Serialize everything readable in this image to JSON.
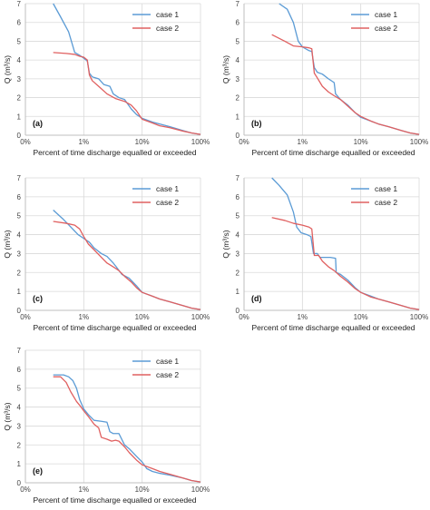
{
  "legend_labels": [
    "case 1",
    "case 2"
  ],
  "colors": {
    "case1": "#5b9bd5",
    "case2": "#e06060",
    "grid": "#d9d9d9",
    "axis": "#bfbfbf"
  },
  "chart_data": [
    {
      "type": "line",
      "panel_label": "(a)",
      "xlabel": "Percent of time discharge equalled or exceeded",
      "ylabel": "Q (m³/s)",
      "x_scale": "log",
      "xlim": [
        0.1,
        100
      ],
      "ylim": [
        0,
        7
      ],
      "x_ticks": [
        "0%",
        "1%",
        "10%",
        "100%"
      ],
      "y_ticks": [
        "0",
        "1",
        "2",
        "3",
        "4",
        "5",
        "6",
        "7"
      ],
      "series": [
        {
          "name": "case 1",
          "points": [
            [
              0.3,
              7.0
            ],
            [
              0.4,
              6.3
            ],
            [
              0.55,
              5.5
            ],
            [
              0.7,
              4.4
            ],
            [
              0.85,
              4.25
            ],
            [
              1.0,
              4.1
            ],
            [
              1.15,
              3.95
            ],
            [
              1.25,
              3.3
            ],
            [
              1.4,
              3.1
            ],
            [
              1.8,
              3.0
            ],
            [
              2.2,
              2.7
            ],
            [
              2.8,
              2.6
            ],
            [
              3.2,
              2.2
            ],
            [
              4.0,
              2.0
            ],
            [
              5.0,
              1.9
            ],
            [
              6.5,
              1.4
            ],
            [
              8.0,
              1.1
            ],
            [
              10,
              0.9
            ],
            [
              15,
              0.7
            ],
            [
              20,
              0.6
            ],
            [
              30,
              0.45
            ],
            [
              50,
              0.25
            ],
            [
              70,
              0.12
            ],
            [
              100,
              0.04
            ]
          ]
        },
        {
          "name": "case 2",
          "points": [
            [
              0.3,
              4.4
            ],
            [
              0.5,
              4.35
            ],
            [
              0.7,
              4.3
            ],
            [
              0.85,
              4.2
            ],
            [
              1.0,
              4.15
            ],
            [
              1.15,
              4.0
            ],
            [
              1.25,
              3.2
            ],
            [
              1.4,
              2.9
            ],
            [
              1.8,
              2.6
            ],
            [
              2.5,
              2.2
            ],
            [
              3.5,
              1.95
            ],
            [
              5.0,
              1.8
            ],
            [
              6.5,
              1.6
            ],
            [
              8.0,
              1.3
            ],
            [
              10,
              0.85
            ],
            [
              15,
              0.65
            ],
            [
              20,
              0.5
            ],
            [
              30,
              0.4
            ],
            [
              50,
              0.22
            ],
            [
              70,
              0.12
            ],
            [
              100,
              0.04
            ]
          ]
        }
      ]
    },
    {
      "type": "line",
      "panel_label": "(b)",
      "xlabel": "Percent of time discharge equalled or exceeded",
      "ylabel": "Q (m³/s)",
      "x_scale": "log",
      "xlim": [
        0.1,
        100
      ],
      "ylim": [
        0,
        7
      ],
      "x_ticks": [
        "0%",
        "1%",
        "10%",
        "100%"
      ],
      "y_ticks": [
        "0",
        "1",
        "2",
        "3",
        "4",
        "5",
        "6",
        "7"
      ],
      "series": [
        {
          "name": "case 1",
          "points": [
            [
              0.4,
              7.0
            ],
            [
              0.55,
              6.7
            ],
            [
              0.7,
              6.0
            ],
            [
              0.85,
              5.0
            ],
            [
              1.0,
              4.7
            ],
            [
              1.3,
              4.5
            ],
            [
              1.45,
              4.45
            ],
            [
              1.6,
              3.6
            ],
            [
              1.8,
              3.35
            ],
            [
              2.2,
              3.25
            ],
            [
              2.8,
              3.0
            ],
            [
              3.5,
              2.8
            ],
            [
              3.7,
              2.2
            ],
            [
              4.5,
              1.9
            ],
            [
              6.0,
              1.6
            ],
            [
              8.0,
              1.2
            ],
            [
              10,
              0.95
            ],
            [
              15,
              0.75
            ],
            [
              20,
              0.6
            ],
            [
              30,
              0.45
            ],
            [
              50,
              0.25
            ],
            [
              70,
              0.12
            ],
            [
              100,
              0.04
            ]
          ]
        },
        {
          "name": "case 2",
          "points": [
            [
              0.3,
              5.35
            ],
            [
              0.5,
              5.0
            ],
            [
              0.7,
              4.75
            ],
            [
              1.0,
              4.7
            ],
            [
              1.3,
              4.65
            ],
            [
              1.45,
              4.6
            ],
            [
              1.6,
              3.3
            ],
            [
              1.8,
              3.05
            ],
            [
              2.2,
              2.6
            ],
            [
              2.8,
              2.3
            ],
            [
              3.5,
              2.1
            ],
            [
              4.5,
              1.9
            ],
            [
              6.0,
              1.55
            ],
            [
              8.0,
              1.2
            ],
            [
              10,
              1.0
            ],
            [
              15,
              0.75
            ],
            [
              20,
              0.6
            ],
            [
              30,
              0.45
            ],
            [
              50,
              0.25
            ],
            [
              70,
              0.12
            ],
            [
              100,
              0.04
            ]
          ]
        }
      ]
    },
    {
      "type": "line",
      "panel_label": "(c)",
      "xlabel": "Percent of time discharge equalled or exceeded",
      "ylabel": "Q (m³/s)",
      "x_scale": "log",
      "xlim": [
        0.1,
        100
      ],
      "ylim": [
        0,
        7
      ],
      "x_ticks": [
        "0%",
        "1%",
        "10%",
        "100%"
      ],
      "y_ticks": [
        "0",
        "1",
        "2",
        "3",
        "4",
        "5",
        "6",
        "7"
      ],
      "series": [
        {
          "name": "case 1",
          "points": [
            [
              0.3,
              5.3
            ],
            [
              0.45,
              4.8
            ],
            [
              0.6,
              4.4
            ],
            [
              0.8,
              4.0
            ],
            [
              1.0,
              3.8
            ],
            [
              1.25,
              3.6
            ],
            [
              1.5,
              3.3
            ],
            [
              2.0,
              3.0
            ],
            [
              2.5,
              2.85
            ],
            [
              3.2,
              2.5
            ],
            [
              3.6,
              2.3
            ],
            [
              4.5,
              1.9
            ],
            [
              6.0,
              1.7
            ],
            [
              8.0,
              1.3
            ],
            [
              10,
              0.95
            ],
            [
              15,
              0.75
            ],
            [
              20,
              0.6
            ],
            [
              30,
              0.45
            ],
            [
              50,
              0.25
            ],
            [
              70,
              0.12
            ],
            [
              100,
              0.04
            ]
          ]
        },
        {
          "name": "case 2",
          "points": [
            [
              0.3,
              4.7
            ],
            [
              0.5,
              4.6
            ],
            [
              0.7,
              4.5
            ],
            [
              0.85,
              4.3
            ],
            [
              1.0,
              3.9
            ],
            [
              1.2,
              3.5
            ],
            [
              1.5,
              3.2
            ],
            [
              2.0,
              2.8
            ],
            [
              2.5,
              2.5
            ],
            [
              3.2,
              2.3
            ],
            [
              4.0,
              2.1
            ],
            [
              5.0,
              1.8
            ],
            [
              6.5,
              1.5
            ],
            [
              8.0,
              1.2
            ],
            [
              10,
              0.95
            ],
            [
              15,
              0.75
            ],
            [
              20,
              0.6
            ],
            [
              30,
              0.45
            ],
            [
              50,
              0.25
            ],
            [
              70,
              0.12
            ],
            [
              100,
              0.04
            ]
          ]
        }
      ]
    },
    {
      "type": "line",
      "panel_label": "(d)",
      "xlabel": "Percent of time discharge equalled or exceeded",
      "ylabel": "Q (m³/s)",
      "x_scale": "log",
      "xlim": [
        0.1,
        100
      ],
      "ylim": [
        0,
        7
      ],
      "x_ticks": [
        "0%",
        "1%",
        "10%",
        "100%"
      ],
      "y_ticks": [
        "0",
        "1",
        "2",
        "3",
        "4",
        "5",
        "6",
        "7"
      ],
      "series": [
        {
          "name": "case 1",
          "points": [
            [
              0.3,
              7.0
            ],
            [
              0.4,
              6.6
            ],
            [
              0.55,
              6.1
            ],
            [
              0.7,
              5.2
            ],
            [
              0.8,
              4.4
            ],
            [
              0.95,
              4.1
            ],
            [
              1.2,
              4.0
            ],
            [
              1.4,
              3.9
            ],
            [
              1.55,
              3.0
            ],
            [
              1.8,
              3.0
            ],
            [
              2.0,
              2.8
            ],
            [
              2.5,
              2.8
            ],
            [
              3.0,
              2.8
            ],
            [
              3.7,
              2.75
            ],
            [
              3.8,
              2.0
            ],
            [
              4.5,
              1.9
            ],
            [
              6.0,
              1.6
            ],
            [
              8.0,
              1.2
            ],
            [
              10,
              0.95
            ],
            [
              15,
              0.75
            ],
            [
              20,
              0.6
            ],
            [
              30,
              0.45
            ],
            [
              50,
              0.25
            ],
            [
              70,
              0.12
            ],
            [
              100,
              0.04
            ]
          ]
        },
        {
          "name": "case 2",
          "points": [
            [
              0.3,
              4.9
            ],
            [
              0.5,
              4.75
            ],
            [
              0.7,
              4.6
            ],
            [
              1.0,
              4.5
            ],
            [
              1.3,
              4.4
            ],
            [
              1.45,
              4.3
            ],
            [
              1.6,
              2.9
            ],
            [
              1.9,
              2.9
            ],
            [
              2.2,
              2.6
            ],
            [
              2.8,
              2.3
            ],
            [
              3.5,
              2.1
            ],
            [
              4.5,
              1.8
            ],
            [
              6.0,
              1.5
            ],
            [
              8.0,
              1.15
            ],
            [
              10,
              0.95
            ],
            [
              15,
              0.7
            ],
            [
              20,
              0.6
            ],
            [
              30,
              0.45
            ],
            [
              50,
              0.25
            ],
            [
              70,
              0.12
            ],
            [
              100,
              0.04
            ]
          ]
        }
      ]
    },
    {
      "type": "line",
      "panel_label": "(e)",
      "xlabel": "Percent of time discharge equalled or exceeded",
      "ylabel": "Q (m³/s)",
      "x_scale": "log",
      "xlim": [
        0.1,
        100
      ],
      "ylim": [
        0,
        7
      ],
      "x_ticks": [
        "0%",
        "1%",
        "10%",
        "100%"
      ],
      "y_ticks": [
        "0",
        "1",
        "2",
        "3",
        "4",
        "5",
        "6",
        "7"
      ],
      "series": [
        {
          "name": "case 1",
          "points": [
            [
              0.3,
              5.7
            ],
            [
              0.45,
              5.7
            ],
            [
              0.55,
              5.6
            ],
            [
              0.65,
              5.4
            ],
            [
              0.75,
              5.0
            ],
            [
              0.85,
              4.4
            ],
            [
              1.0,
              3.9
            ],
            [
              1.2,
              3.6
            ],
            [
              1.5,
              3.3
            ],
            [
              2.0,
              3.25
            ],
            [
              2.5,
              3.2
            ],
            [
              2.8,
              2.7
            ],
            [
              3.2,
              2.6
            ],
            [
              4.0,
              2.6
            ],
            [
              5.0,
              2.0
            ],
            [
              6.0,
              1.8
            ],
            [
              8.0,
              1.4
            ],
            [
              10,
              1.1
            ],
            [
              12,
              0.75
            ],
            [
              15,
              0.6
            ],
            [
              20,
              0.5
            ],
            [
              30,
              0.4
            ],
            [
              50,
              0.25
            ],
            [
              70,
              0.12
            ],
            [
              100,
              0.04
            ]
          ]
        },
        {
          "name": "case 2",
          "points": [
            [
              0.3,
              5.6
            ],
            [
              0.4,
              5.6
            ],
            [
              0.5,
              5.3
            ],
            [
              0.6,
              4.8
            ],
            [
              0.75,
              4.3
            ],
            [
              0.9,
              4.0
            ],
            [
              1.0,
              3.8
            ],
            [
              1.2,
              3.5
            ],
            [
              1.5,
              3.1
            ],
            [
              1.8,
              2.9
            ],
            [
              2.0,
              2.4
            ],
            [
              2.5,
              2.3
            ],
            [
              3.0,
              2.2
            ],
            [
              3.5,
              2.25
            ],
            [
              4.0,
              2.2
            ],
            [
              5.0,
              1.9
            ],
            [
              6.0,
              1.6
            ],
            [
              8.0,
              1.2
            ],
            [
              10,
              0.95
            ],
            [
              15,
              0.75
            ],
            [
              20,
              0.6
            ],
            [
              30,
              0.45
            ],
            [
              50,
              0.25
            ],
            [
              70,
              0.12
            ],
            [
              100,
              0.04
            ]
          ]
        }
      ]
    }
  ]
}
